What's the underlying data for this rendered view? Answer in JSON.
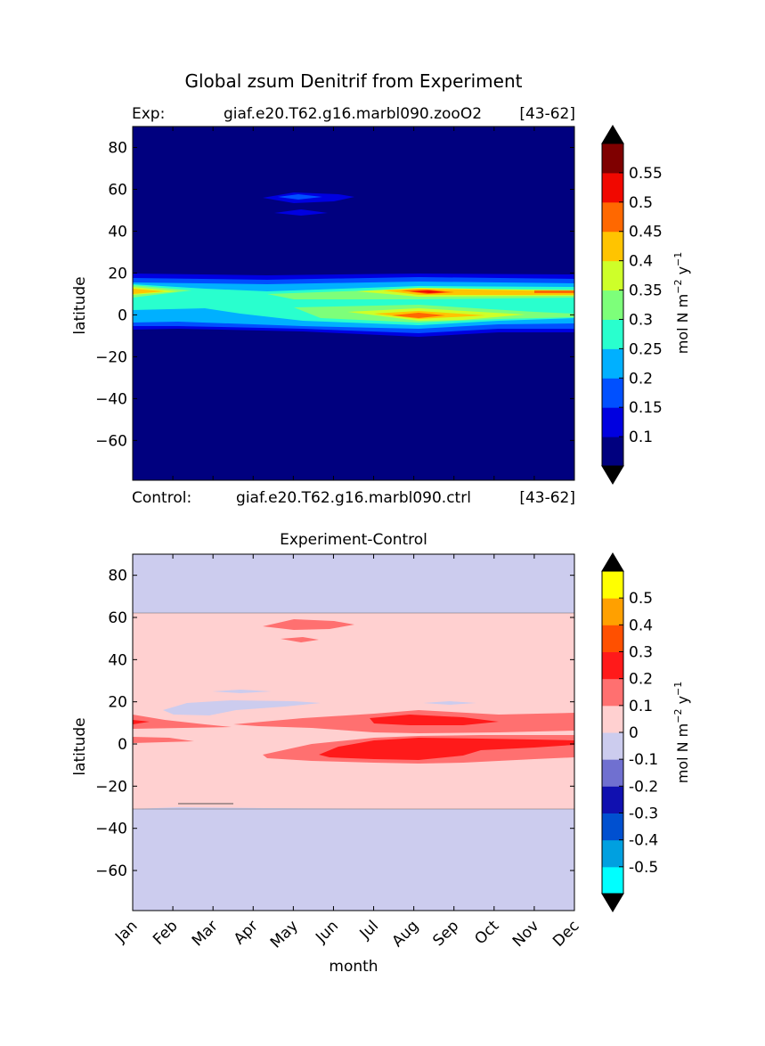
{
  "figure": {
    "title": "Global zsum Denitrif from Experiment",
    "exp_label": "Exp:",
    "exp_name": "giaf.e20.T62.g16.marbl090.zooO2",
    "exp_years": "[43-62]",
    "ctrl_label": "Control:",
    "ctrl_name": "giaf.e20.T62.g16.marbl090.ctrl",
    "ctrl_years": "[43-62]",
    "units_main": "mol N m",
    "units_sup1": "−2",
    "units_mid": " y",
    "units_sup2": "−1"
  },
  "chart_data": [
    {
      "type": "heatmap",
      "title": "Global zsum Denitrif from Experiment",
      "xlabel": "",
      "ylabel": "latitude",
      "xlim": [
        0,
        11
      ],
      "ylim": [
        -79,
        90
      ],
      "yticks": [
        -60,
        -40,
        -20,
        0,
        20,
        40,
        60,
        80
      ],
      "ytick_labels": [
        "−60",
        "−40",
        "−20",
        "0",
        "20",
        "40",
        "60",
        "80"
      ],
      "colorbar": {
        "levels": [
          "0.1",
          "0.15",
          "0.2",
          "0.25",
          "0.3",
          "0.35",
          "0.4",
          "0.45",
          "0.5",
          "0.55"
        ],
        "colors": [
          "#00007f",
          "#0000e0",
          "#0050ff",
          "#00b0ff",
          "#29ffce",
          "#7dff7a",
          "#ceff29",
          "#ffc400",
          "#ff6800",
          "#f10800",
          "#7f0000"
        ],
        "extend": "both",
        "under": "#00007f",
        "over": "#000000"
      },
      "description_bands": "denitrification band between about -8 and 20 latitude, peaks near 10N and 0 in Jul-Sep; weak patch near 55N in May"
    },
    {
      "type": "heatmap",
      "title": "Experiment-Control",
      "xlabel": "month",
      "ylabel": "latitude",
      "xlim": [
        0,
        11
      ],
      "ylim": [
        -79,
        90
      ],
      "xtick_labels": [
        "Jan",
        "Feb",
        "Mar",
        "Apr",
        "May",
        "Jun",
        "Jul",
        "Aug",
        "Sep",
        "Oct",
        "Nov",
        "Dec"
      ],
      "yticks": [
        -60,
        -40,
        -20,
        0,
        20,
        40,
        60,
        80
      ],
      "ytick_labels": [
        "−60",
        "−40",
        "−20",
        "0",
        "20",
        "40",
        "60",
        "80"
      ],
      "colorbar": {
        "levels": [
          "-0.5",
          "-0.4",
          "-0.3",
          "-0.2",
          "-0.1",
          "0",
          "0.1",
          "0.2",
          "0.3",
          "0.4",
          "0.5"
        ],
        "colors": [
          "#00ffff",
          "#00a0e0",
          "#0050d0",
          "#1010b0",
          "#7070d0",
          "#ccccee",
          "#ffd0d0",
          "#ff7070",
          "#ff1a1a",
          "#ff5000",
          "#ffa000",
          "#ffff00"
        ],
        "extend": "both",
        "under": "#000000",
        "over": "#000000"
      },
      "description_bands": "positive 0..0.1 between -30 and 62 latitude, 0.1-0.3 increase near 0-15N Jul-Dec, negative 0..-0.1 poleward"
    }
  ]
}
